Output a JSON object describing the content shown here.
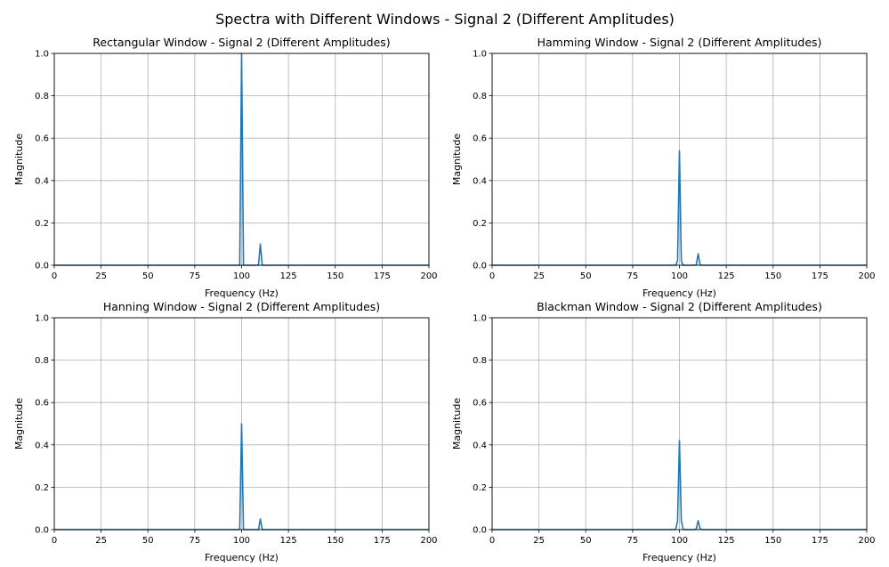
{
  "figure_title": "Spectra with Different Windows - Signal 2 (Different Amplitudes)",
  "colors": {
    "line": "#1f77b4",
    "grid": "#b0b0b0",
    "axes": "#000000"
  },
  "chart_data": [
    {
      "type": "line",
      "title": "Rectangular Window - Signal 2 (Different Amplitudes)",
      "xlabel": "Frequency (Hz)",
      "ylabel": "Magnitude",
      "xlim": [
        0,
        200
      ],
      "ylim": [
        0,
        1
      ],
      "xticks": [
        "0",
        "25",
        "50",
        "75",
        "100",
        "125",
        "150",
        "175",
        "200"
      ],
      "yticks": [
        "0.0",
        "0.2",
        "0.4",
        "0.6",
        "0.8",
        "1.0"
      ],
      "grid": true,
      "series": [
        {
          "x": [
            0,
            99,
            100,
            101,
            109,
            110,
            111,
            200
          ],
          "y": [
            0,
            0,
            1.0,
            0,
            0,
            0.1,
            0,
            0
          ]
        }
      ]
    },
    {
      "type": "line",
      "title": "Hamming Window - Signal 2 (Different Amplitudes)",
      "xlabel": "Frequency (Hz)",
      "ylabel": "Magnitude",
      "xlim": [
        0,
        200
      ],
      "ylim": [
        0,
        1
      ],
      "xticks": [
        "0",
        "25",
        "50",
        "75",
        "100",
        "125",
        "150",
        "175",
        "200"
      ],
      "yticks": [
        "0.0",
        "0.2",
        "0.4",
        "0.6",
        "0.8",
        "1.0"
      ],
      "grid": true,
      "series": [
        {
          "x": [
            0,
            98,
            99,
            100,
            101,
            102,
            108,
            109,
            110,
            111,
            112,
            200
          ],
          "y": [
            0,
            0,
            0.02,
            0.54,
            0.02,
            0,
            0,
            0.002,
            0.054,
            0.002,
            0,
            0
          ]
        }
      ]
    },
    {
      "type": "line",
      "title": "Hanning Window - Signal 2 (Different Amplitudes)",
      "xlabel": "Frequency (Hz)",
      "ylabel": "Magnitude",
      "xlim": [
        0,
        200
      ],
      "ylim": [
        0,
        1
      ],
      "xticks": [
        "0",
        "25",
        "50",
        "75",
        "100",
        "125",
        "150",
        "175",
        "200"
      ],
      "yticks": [
        "0.0",
        "0.2",
        "0.4",
        "0.6",
        "0.8",
        "1.0"
      ],
      "grid": true,
      "series": [
        {
          "x": [
            0,
            98,
            99,
            100,
            101,
            102,
            108,
            109,
            110,
            111,
            112,
            200
          ],
          "y": [
            0,
            0,
            0.0,
            0.5,
            0.0,
            0,
            0,
            0.0,
            0.05,
            0.0,
            0,
            0
          ]
        }
      ]
    },
    {
      "type": "line",
      "title": "Blackman Window - Signal 2 (Different Amplitudes)",
      "xlabel": "Frequency (Hz)",
      "ylabel": "Magnitude",
      "xlim": [
        0,
        200
      ],
      "ylim": [
        0,
        1
      ],
      "xticks": [
        "0",
        "25",
        "50",
        "75",
        "100",
        "125",
        "150",
        "175",
        "200"
      ],
      "yticks": [
        "0.0",
        "0.2",
        "0.4",
        "0.6",
        "0.8",
        "1.0"
      ],
      "grid": true,
      "series": [
        {
          "x": [
            0,
            97,
            98,
            99,
            100,
            101,
            102,
            103,
            107,
            108,
            109,
            110,
            111,
            112,
            113,
            200
          ],
          "y": [
            0,
            0,
            0.002,
            0.04,
            0.42,
            0.04,
            0.002,
            0,
            0,
            0.0,
            0.004,
            0.042,
            0.004,
            0.0,
            0,
            0
          ]
        }
      ]
    }
  ]
}
